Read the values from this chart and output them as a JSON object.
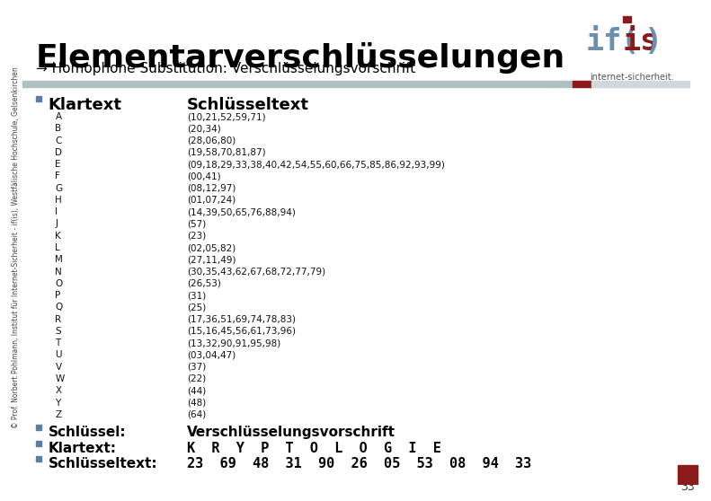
{
  "title": "Elementarverschlüsselungen",
  "subtitle": "→ Homophone Substitution: Verschlüsselungsvorschrift",
  "bg_color": "#ffffff",
  "title_color": "#000000",
  "subtitle_color": "#000000",
  "header_klartext": "Klartext",
  "header_schluessel": "Schlüsseltext",
  "alphabet": [
    "A",
    "B",
    "C",
    "D",
    "E",
    "F",
    "G",
    "H",
    "I",
    "J",
    "K",
    "L",
    "M",
    "N",
    "O",
    "P",
    "Q",
    "R",
    "S",
    "T",
    "U",
    "V",
    "W",
    "X",
    "Y",
    "Z"
  ],
  "ciphertext": [
    "(10,21,52,59,71)",
    "(20,34)",
    "(28,06,80)",
    "(19,58,70,81,87)",
    "(09,18,29,33,38,40,42,54,55,60,66,75,85,86,92,93,99)",
    "(00,41)",
    "(08,12,97)",
    "(01,07,24)",
    "(14,39,50,65,76,88,94)",
    "(57)",
    "(23)",
    "(02,05,82)",
    "(27,11,49)",
    "(30,35,43,62,67,68,72,77,79)",
    "(26,53)",
    "(31)",
    "(25)",
    "(17,36,51,69,74,78,83)",
    "(15,16,45,56,61,73,96)",
    "(13,32,90,91,95,98)",
    "(03,04,47)",
    "(37)",
    "(22)",
    "(44)",
    "(48)",
    "(64)"
  ],
  "bullet_color": "#5a7fa0",
  "dark_red": "#8b1a1a",
  "schluessel_label": "Schlüssel:",
  "klartext_label": "Klartext:",
  "schluesseltext_label": "Schlüsseltext:",
  "verschluesselung_text": "Verschlüsselungsvorschrift",
  "klartext_example": "K  R  Y  P  T  O  L  O  G  I  E",
  "schluesseltext_example": "23  69  48  31  90  26  05  53  08  94  33",
  "page_number": "33",
  "side_text": "© Prof. Norbert Pohlmann, Institut für Internet-Sicherheit - if(is), Westfälische Hochschule, Gelsenkirchen",
  "ifis_subtitle": "internet-sicherheit."
}
